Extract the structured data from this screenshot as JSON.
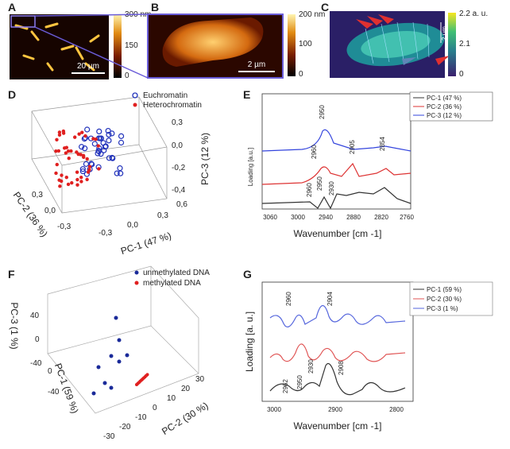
{
  "panels": {
    "A": {
      "label": "A",
      "colorbar": [
        "300 nm",
        "150",
        "0"
      ],
      "scalebar": "20 µm"
    },
    "B": {
      "label": "B",
      "colorbar": [
        "200 nm",
        "100",
        "0"
      ],
      "scalebar": "2 µm"
    },
    "C": {
      "label": "C",
      "colorbar": [
        "2.2 a. u.",
        "2.1",
        "0"
      ],
      "scalebar": "2 µm"
    },
    "D": {
      "label": "D",
      "legend": [
        "Euchromatin",
        "Heterochromatin"
      ],
      "axes": {
        "pc1": "PC-1 (47 %)",
        "pc2": "PC-2 (36 %)",
        "pc3": "PC-3 (12 %)"
      },
      "pc3_ticks": [
        "0,3",
        "0,0",
        "-0,2",
        "-0,4"
      ],
      "pc1_ticks": [
        "0,6",
        "0,3",
        "0,0",
        "-0,3"
      ],
      "pc2_ticks": [
        "0,3",
        "0,0",
        "-0,3"
      ]
    },
    "E": {
      "label": "E",
      "legend": [
        "PC-1 (47 %)",
        "PC-2 (36 %)",
        "PC-3 (12 %)"
      ],
      "annotations": [
        "2950",
        "2960",
        "2905",
        "2854",
        "2960",
        "2950",
        "2930"
      ],
      "y_label": "Loading [a.u.]",
      "x_label": "Wavenumber [cm -1]",
      "x_ticks": [
        "3060",
        "3000",
        "2940",
        "2880",
        "2820",
        "2760"
      ]
    },
    "F": {
      "label": "F",
      "legend": [
        "unmethylated DNA",
        "methylated DNA"
      ],
      "axes": {
        "pc3": "PC-3 (1 %)",
        "pc1": "PC-1 (59 %)",
        "pc2": "PC-2 (30 %)"
      },
      "pc3_ticks": [
        "40",
        "0",
        "-40"
      ],
      "pc1_ticks": [
        "0",
        "-40"
      ],
      "pc2_ticks": [
        "-30",
        "-20",
        "-10",
        "0",
        "10",
        "20",
        "30"
      ]
    },
    "G": {
      "label": "G",
      "legend": [
        "PC-1 (59 %)",
        "PC-2 (30 %)",
        "PC-3 (1 %)"
      ],
      "annotations": [
        "2960",
        "2904",
        "2930",
        "2962",
        "2950",
        "2908"
      ],
      "y_label": "Loading  [a. u.]",
      "x_label": "Wavenumber [cm -1]",
      "x_ticks": [
        "3000",
        "2900",
        "2800"
      ]
    }
  }
}
